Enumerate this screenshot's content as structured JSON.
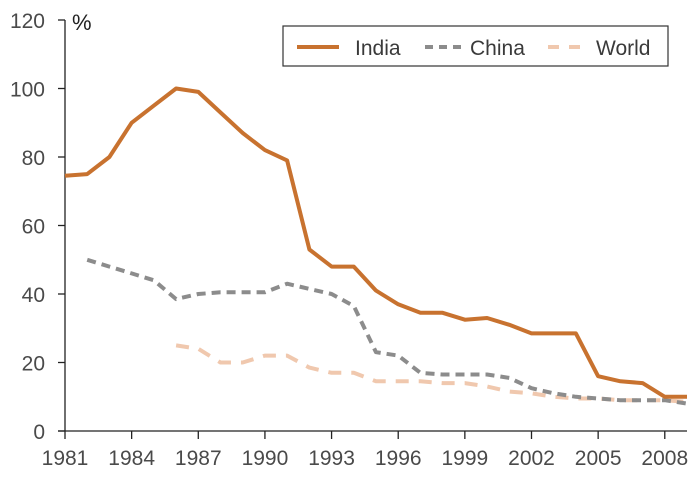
{
  "chart_data": {
    "type": "line",
    "title": "",
    "xlabel": "",
    "ylabel": "%",
    "xlim": [
      1981,
      2009
    ],
    "ylim": [
      0,
      120
    ],
    "x_ticks": [
      1981,
      1984,
      1987,
      1990,
      1993,
      1996,
      1999,
      2002,
      2005,
      2008
    ],
    "x_tick_labels": [
      "1981",
      "1984",
      "1987",
      "1990",
      "1993",
      "1996",
      "1999",
      "2002",
      "2005",
      "2008"
    ],
    "y_ticks": [
      0,
      20,
      40,
      60,
      80,
      100,
      120
    ],
    "y_tick_labels": [
      "0",
      "20",
      "40",
      "60",
      "80",
      "100",
      "120"
    ],
    "grid": false,
    "legend": {
      "position": "top-right"
    },
    "series": [
      {
        "name": "India",
        "style": "solid",
        "color": "#C8722F",
        "x": [
          1981,
          1982,
          1983,
          1984,
          1985,
          1986,
          1987,
          1988,
          1989,
          1990,
          1991,
          1992,
          1993,
          1994,
          1995,
          1996,
          1997,
          1998,
          1999,
          2000,
          2001,
          2002,
          2003,
          2004,
          2005,
          2006,
          2007,
          2008,
          2009
        ],
        "values": [
          74.5,
          75,
          80,
          90,
          95,
          100,
          99,
          93,
          87,
          82,
          79,
          53,
          48,
          48,
          41,
          37,
          34.5,
          34.5,
          32.5,
          33,
          31,
          28.5,
          28.5,
          28.5,
          16,
          14.5,
          14,
          10,
          10
        ]
      },
      {
        "name": "China",
        "style": "dashed",
        "color": "#8C8C8C",
        "x": [
          1982,
          1983,
          1984,
          1985,
          1986,
          1987,
          1988,
          1989,
          1990,
          1991,
          1992,
          1993,
          1994,
          1995,
          1996,
          1997,
          1998,
          1999,
          2000,
          2001,
          2002,
          2003,
          2004,
          2005,
          2006,
          2007,
          2008,
          2009
        ],
        "values": [
          50,
          48,
          46,
          44,
          38.5,
          40,
          40.5,
          40.5,
          40.5,
          43,
          41.5,
          40,
          36.5,
          23,
          22,
          17,
          16.5,
          16.5,
          16.5,
          15.5,
          12.5,
          11,
          10,
          9.5,
          9,
          9,
          9,
          8
        ]
      },
      {
        "name": "World",
        "style": "dashed-long",
        "color": "#F0C8AE",
        "x": [
          1986,
          1987,
          1988,
          1989,
          1990,
          1991,
          1992,
          1993,
          1994,
          1995,
          1996,
          1997,
          1998,
          1999,
          2000,
          2001,
          2002,
          2003,
          2004,
          2005,
          2006,
          2007,
          2008,
          2009
        ],
        "values": [
          25,
          24,
          20,
          20,
          22,
          22,
          18.5,
          17,
          17,
          14.5,
          14.5,
          14.5,
          14,
          14,
          13,
          11.5,
          11,
          10,
          9.5,
          9.5,
          9,
          9,
          9,
          8.5
        ]
      }
    ]
  }
}
